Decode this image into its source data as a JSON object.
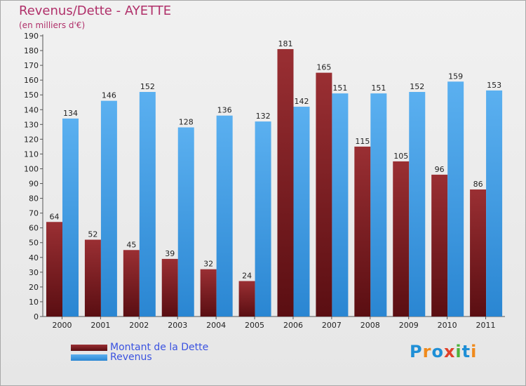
{
  "title": "Revenus/Dette - AYETTE",
  "subtitle": "(en milliers d'€)",
  "logo": {
    "text": "Proxiti",
    "colors": [
      "#1f8fd6",
      "#f08a1c",
      "#1f8fd6",
      "#e0402a",
      "#4db33a",
      "#1f8fd6",
      "#f08a1c"
    ]
  },
  "colors": {
    "dette": "#7a1e22",
    "revenus": "#3e9be4",
    "title": "#b0306a",
    "legend_text": "#3a52e0"
  },
  "chart_data": {
    "type": "bar",
    "title": "Revenus/Dette - AYETTE",
    "subtitle": "(en milliers d'€)",
    "categories": [
      "2000",
      "2001",
      "2002",
      "2003",
      "2004",
      "2005",
      "2006",
      "2007",
      "2008",
      "2009",
      "2010",
      "2011"
    ],
    "series": [
      {
        "name": "Montant de la Dette",
        "values": [
          64,
          52,
          45,
          39,
          32,
          24,
          181,
          165,
          115,
          105,
          96,
          86
        ]
      },
      {
        "name": "Revenus",
        "values": [
          134,
          146,
          152,
          128,
          136,
          132,
          142,
          151,
          151,
          152,
          159,
          153
        ]
      }
    ],
    "ylim": [
      0,
      190
    ],
    "ytick_step": 10,
    "data_labels": true,
    "grid": false,
    "legend": "bottom-left"
  }
}
